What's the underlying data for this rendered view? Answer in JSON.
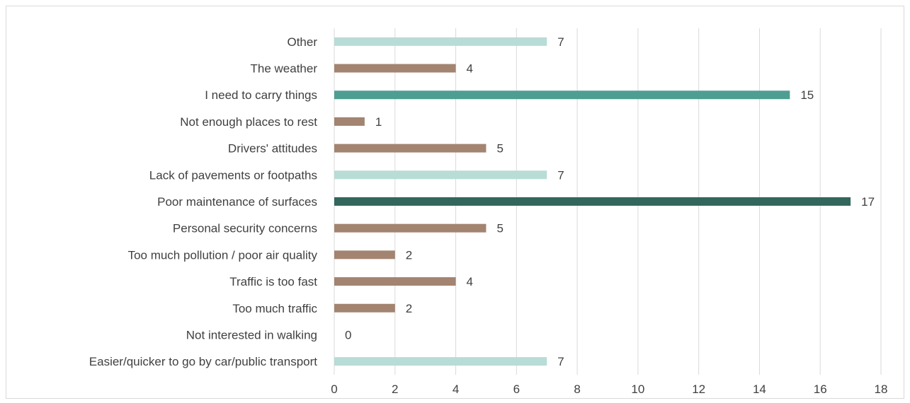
{
  "chart_data": {
    "type": "bar",
    "orientation": "horizontal",
    "categories": [
      "Other",
      "The weather",
      "I need to carry things",
      "Not enough places to rest",
      "Drivers' attitudes",
      "Lack of pavements or footpaths",
      "Poor maintenance of surfaces",
      "Personal security concerns",
      "Too much pollution / poor air quality",
      "Traffic is too fast",
      "Too much traffic",
      "Not interested in walking",
      "Easier/quicker to go by car/public transport"
    ],
    "values": [
      7,
      4,
      15,
      1,
      5,
      7,
      17,
      5,
      2,
      4,
      2,
      0,
      7
    ],
    "bar_colors": [
      "#b8dcd6",
      "#a38470",
      "#4e9e91",
      "#a38470",
      "#a38470",
      "#b8dcd6",
      "#33665c",
      "#a38470",
      "#a38470",
      "#a38470",
      "#a38470",
      "#a38470",
      "#b8dcd6"
    ],
    "data_labels": [
      "7",
      "4",
      "15",
      "1",
      "5",
      "7",
      "17",
      "5",
      "2",
      "4",
      "2",
      "0",
      "7"
    ],
    "x_ticks": [
      "0",
      "2",
      "4",
      "6",
      "8",
      "10",
      "12",
      "14",
      "16",
      "18"
    ],
    "xlim": [
      0,
      18
    ],
    "grid": "vertical",
    "legend": "none"
  }
}
